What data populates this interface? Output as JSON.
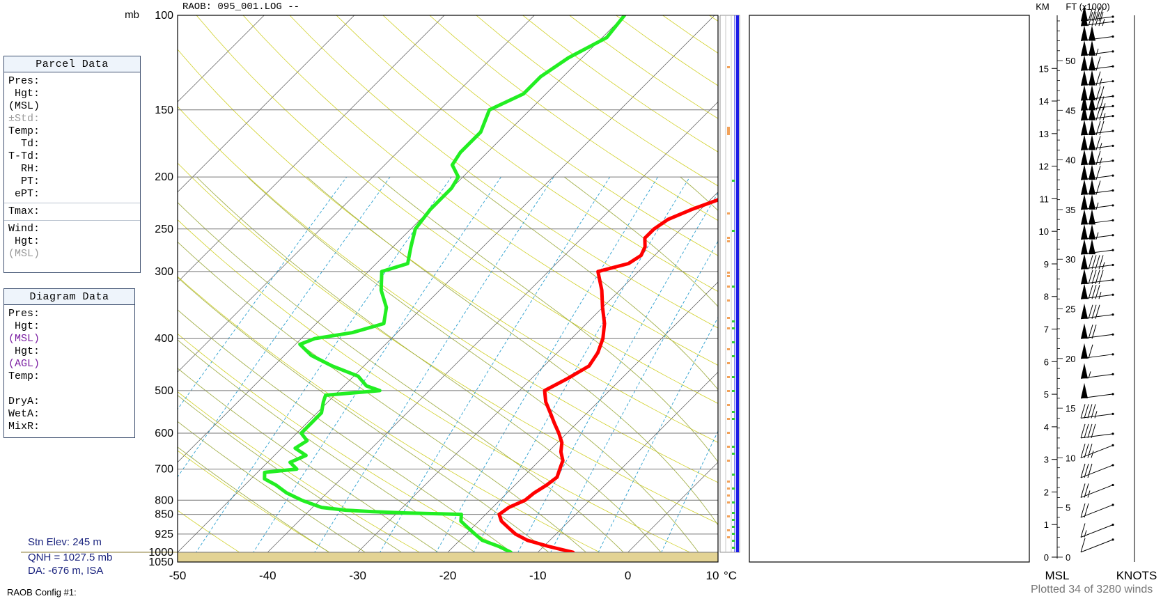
{
  "header": {
    "title": "RAOB:  095_001.LOG  --",
    "pressure_unit": "mb",
    "km_label": "KM",
    "ft_label": "FT (x1000)"
  },
  "parcel_panel": {
    "title": "Parcel Data",
    "rows": [
      {
        "label": "Pres:",
        "dim": false
      },
      {
        "label": " Hgt:",
        "dim": false
      },
      {
        "label": "(MSL)",
        "dim": false
      },
      {
        "label": "±Std:",
        "dim": true
      },
      {
        "label": "Temp:",
        "dim": false
      },
      {
        "label": "  Td:",
        "dim": false
      },
      {
        "label": "T-Td:",
        "dim": false
      },
      {
        "label": "  RH:",
        "dim": false
      },
      {
        "label": "  PT:",
        "dim": false
      },
      {
        "label": " ePT:",
        "dim": false
      }
    ],
    "tmax_label": "Tmax:",
    "wind_rows": [
      {
        "label": "Wind:",
        "dim": false
      },
      {
        "label": " Hgt:",
        "dim": false
      },
      {
        "label": "(MSL)",
        "dim": true
      }
    ]
  },
  "diagram_panel": {
    "title": "Diagram Data",
    "rows": [
      {
        "label": "Pres:",
        "color": "#000000"
      },
      {
        "label": " Hgt:",
        "color": "#000000"
      },
      {
        "label": "(MSL)",
        "color": "#7b1fa2"
      },
      {
        "label": " Hgt:",
        "color": "#000000"
      },
      {
        "label": "(AGL)",
        "color": "#7b1fa2"
      },
      {
        "label": "Temp:",
        "color": "#000000"
      },
      {
        "label": " ",
        "color": "#000000"
      },
      {
        "label": "DryA:",
        "color": "#000000"
      },
      {
        "label": "WetA:",
        "color": "#000000"
      },
      {
        "label": "MixR:",
        "color": "#000000"
      }
    ]
  },
  "station": {
    "elev": "Stn Elev: 245 m",
    "qnh": "QNH = 1027.5 mb",
    "da": "DA: -676 m, ISA"
  },
  "footer": {
    "config": "RAOB Config #1:",
    "plotted": "Plotted 34 of 3280 winds",
    "msl_label": "MSL",
    "knots_label": "KNOTS"
  },
  "colors": {
    "temperature": "#ff0000",
    "dewpoint": "#22ee22",
    "isotherm": "#555555",
    "dry_adiabat": "#c8c800",
    "moist_adiabat": "#9aa83a",
    "mixing_ratio": "#2a9fcf",
    "ground": "#e3d394",
    "wind_bar": "#1a1ae6",
    "cloud": "#f2a25a",
    "moisture": "#33cc33"
  },
  "chart_data": {
    "type": "skew-t",
    "xlabel": "°C",
    "x_ticks": [
      -50,
      -40,
      -30,
      -20,
      -10,
      0,
      10
    ],
    "x_range": [
      -50,
      10
    ],
    "pressure_range": [
      1050,
      100
    ],
    "pressure_ticks": [
      100,
      150,
      200,
      250,
      300,
      400,
      500,
      600,
      700,
      800,
      850,
      925,
      1000,
      1050
    ],
    "km_ticks": [
      0,
      1,
      2,
      3,
      4,
      5,
      6,
      7,
      8,
      9,
      10,
      11,
      12,
      13,
      14,
      15
    ],
    "ft_ticks": [
      0,
      5,
      10,
      15,
      20,
      25,
      30,
      35,
      40,
      45,
      50
    ],
    "surface_pressure": 1000,
    "temperature_series": {
      "name": "Temperature",
      "points": [
        {
          "p": 1000,
          "t": -6.1
        },
        {
          "p": 975,
          "t": -9.5
        },
        {
          "p": 950,
          "t": -12.5
        },
        {
          "p": 925,
          "t": -14.5
        },
        {
          "p": 900,
          "t": -16.0
        },
        {
          "p": 875,
          "t": -17.5
        },
        {
          "p": 850,
          "t": -18.5
        },
        {
          "p": 825,
          "t": -18.2
        },
        {
          "p": 800,
          "t": -17.2
        },
        {
          "p": 775,
          "t": -17.0
        },
        {
          "p": 750,
          "t": -16.5
        },
        {
          "p": 725,
          "t": -16.2
        },
        {
          "p": 700,
          "t": -16.8
        },
        {
          "p": 675,
          "t": -17.4
        },
        {
          "p": 650,
          "t": -18.6
        },
        {
          "p": 625,
          "t": -19.5
        },
        {
          "p": 600,
          "t": -20.9
        },
        {
          "p": 575,
          "t": -22.5
        },
        {
          "p": 550,
          "t": -24.1
        },
        {
          "p": 525,
          "t": -25.8
        },
        {
          "p": 500,
          "t": -27.2
        },
        {
          "p": 475,
          "t": -26.0
        },
        {
          "p": 450,
          "t": -25.0
        },
        {
          "p": 425,
          "t": -25.5
        },
        {
          "p": 400,
          "t": -26.5
        },
        {
          "p": 375,
          "t": -28.0
        },
        {
          "p": 350,
          "t": -30.0
        },
        {
          "p": 325,
          "t": -32.0
        },
        {
          "p": 300,
          "t": -34.5
        },
        {
          "p": 290,
          "t": -32.0
        },
        {
          "p": 280,
          "t": -31.5
        },
        {
          "p": 270,
          "t": -32.0
        },
        {
          "p": 260,
          "t": -33.0
        },
        {
          "p": 250,
          "t": -33.0
        },
        {
          "p": 240,
          "t": -32.5
        },
        {
          "p": 230,
          "t": -31.0
        },
        {
          "p": 220,
          "t": -29.0
        },
        {
          "p": 210,
          "t": -27.0
        },
        {
          "p": 200,
          "t": -26.0
        },
        {
          "p": 190,
          "t": -27.0
        },
        {
          "p": 180,
          "t": -28.0
        },
        {
          "p": 170,
          "t": -27.5
        },
        {
          "p": 160,
          "t": -28.5
        },
        {
          "p": 150,
          "t": -29.5
        },
        {
          "p": 140,
          "t": -28.5
        },
        {
          "p": 130,
          "t": -29.5
        },
        {
          "p": 120,
          "t": -31.0
        },
        {
          "p": 110,
          "t": -29.0
        },
        {
          "p": 100,
          "t": -29.0
        }
      ]
    },
    "dewpoint_series": {
      "name": "Dewpoint",
      "points": [
        {
          "p": 1000,
          "t": -13.0
        },
        {
          "p": 975,
          "t": -15.0
        },
        {
          "p": 950,
          "t": -17.5
        },
        {
          "p": 925,
          "t": -19.0
        },
        {
          "p": 900,
          "t": -20.5
        },
        {
          "p": 875,
          "t": -22.0
        },
        {
          "p": 850,
          "t": -22.7
        },
        {
          "p": 845,
          "t": -29.0
        },
        {
          "p": 840,
          "t": -33.0
        },
        {
          "p": 835,
          "t": -36.0
        },
        {
          "p": 825,
          "t": -39.0
        },
        {
          "p": 800,
          "t": -42.0
        },
        {
          "p": 775,
          "t": -44.5
        },
        {
          "p": 750,
          "t": -46.5
        },
        {
          "p": 730,
          "t": -48.5
        },
        {
          "p": 710,
          "t": -49.2
        },
        {
          "p": 700,
          "t": -46.0
        },
        {
          "p": 680,
          "t": -47.5
        },
        {
          "p": 660,
          "t": -46.5
        },
        {
          "p": 640,
          "t": -48.5
        },
        {
          "p": 620,
          "t": -48.0
        },
        {
          "p": 600,
          "t": -49.5
        },
        {
          "p": 575,
          "t": -49.5
        },
        {
          "p": 550,
          "t": -49.5
        },
        {
          "p": 525,
          "t": -50.5
        },
        {
          "p": 510,
          "t": -51.0
        },
        {
          "p": 500,
          "t": -45.5
        },
        {
          "p": 490,
          "t": -47.5
        },
        {
          "p": 470,
          "t": -49.5
        },
        {
          "p": 450,
          "t": -53.5
        },
        {
          "p": 430,
          "t": -57.0
        },
        {
          "p": 410,
          "t": -59.5
        },
        {
          "p": 400,
          "t": -58.5
        },
        {
          "p": 390,
          "t": -55.0
        },
        {
          "p": 375,
          "t": -52.5
        },
        {
          "p": 350,
          "t": -54.0
        },
        {
          "p": 325,
          "t": -56.5
        },
        {
          "p": 300,
          "t": -58.5
        },
        {
          "p": 290,
          "t": -56.5
        },
        {
          "p": 270,
          "t": -58.0
        },
        {
          "p": 250,
          "t": -59.5
        },
        {
          "p": 230,
          "t": -60.0
        },
        {
          "p": 210,
          "t": -60.0
        },
        {
          "p": 200,
          "t": -60.5
        },
        {
          "p": 190,
          "t": -62.5
        },
        {
          "p": 180,
          "t": -63.0
        },
        {
          "p": 165,
          "t": -63.0
        },
        {
          "p": 150,
          "t": -64.5
        },
        {
          "p": 140,
          "t": -62.5
        },
        {
          "p": 130,
          "t": -62.5
        },
        {
          "p": 120,
          "t": -61.5
        },
        {
          "p": 110,
          "t": -59.5
        },
        {
          "p": 100,
          "t": -60.0
        }
      ]
    },
    "winds": [
      {
        "h_ft": 0.5,
        "speed": 10
      },
      {
        "h_ft": 2,
        "speed": 15
      },
      {
        "h_ft": 4,
        "speed": 20
      },
      {
        "h_ft": 6,
        "speed": 25
      },
      {
        "h_ft": 8,
        "speed": 30
      },
      {
        "h_ft": 10,
        "speed": 35
      },
      {
        "h_ft": 12,
        "speed": 40
      },
      {
        "h_ft": 14,
        "speed": 45
      },
      {
        "h_ft": 16,
        "speed": 50
      },
      {
        "h_ft": 18,
        "speed": 55
      },
      {
        "h_ft": 20,
        "speed": 60
      },
      {
        "h_ft": 22,
        "speed": 70
      },
      {
        "h_ft": 24,
        "speed": 80
      },
      {
        "h_ft": 26,
        "speed": 85
      },
      {
        "h_ft": 27.5,
        "speed": 90
      },
      {
        "h_ft": 29,
        "speed": 95
      },
      {
        "h_ft": 30.5,
        "speed": 100
      },
      {
        "h_ft": 32,
        "speed": 105
      },
      {
        "h_ft": 33.5,
        "speed": 100
      },
      {
        "h_ft": 35,
        "speed": 105
      },
      {
        "h_ft": 36.5,
        "speed": 110
      },
      {
        "h_ft": 38,
        "speed": 110
      },
      {
        "h_ft": 39.5,
        "speed": 115
      },
      {
        "h_ft": 41,
        "speed": 115
      },
      {
        "h_ft": 42.5,
        "speed": 120
      },
      {
        "h_ft": 44,
        "speed": 125
      },
      {
        "h_ft": 45,
        "speed": 125
      },
      {
        "h_ft": 46,
        "speed": 120
      },
      {
        "h_ft": 47.5,
        "speed": 115
      },
      {
        "h_ft": 49,
        "speed": 110
      },
      {
        "h_ft": 50.5,
        "speed": 105
      },
      {
        "h_ft": 52,
        "speed": 100
      },
      {
        "h_ft": 53.5,
        "speed": 95
      },
      {
        "h_ft": 54,
        "speed": 90
      }
    ]
  }
}
